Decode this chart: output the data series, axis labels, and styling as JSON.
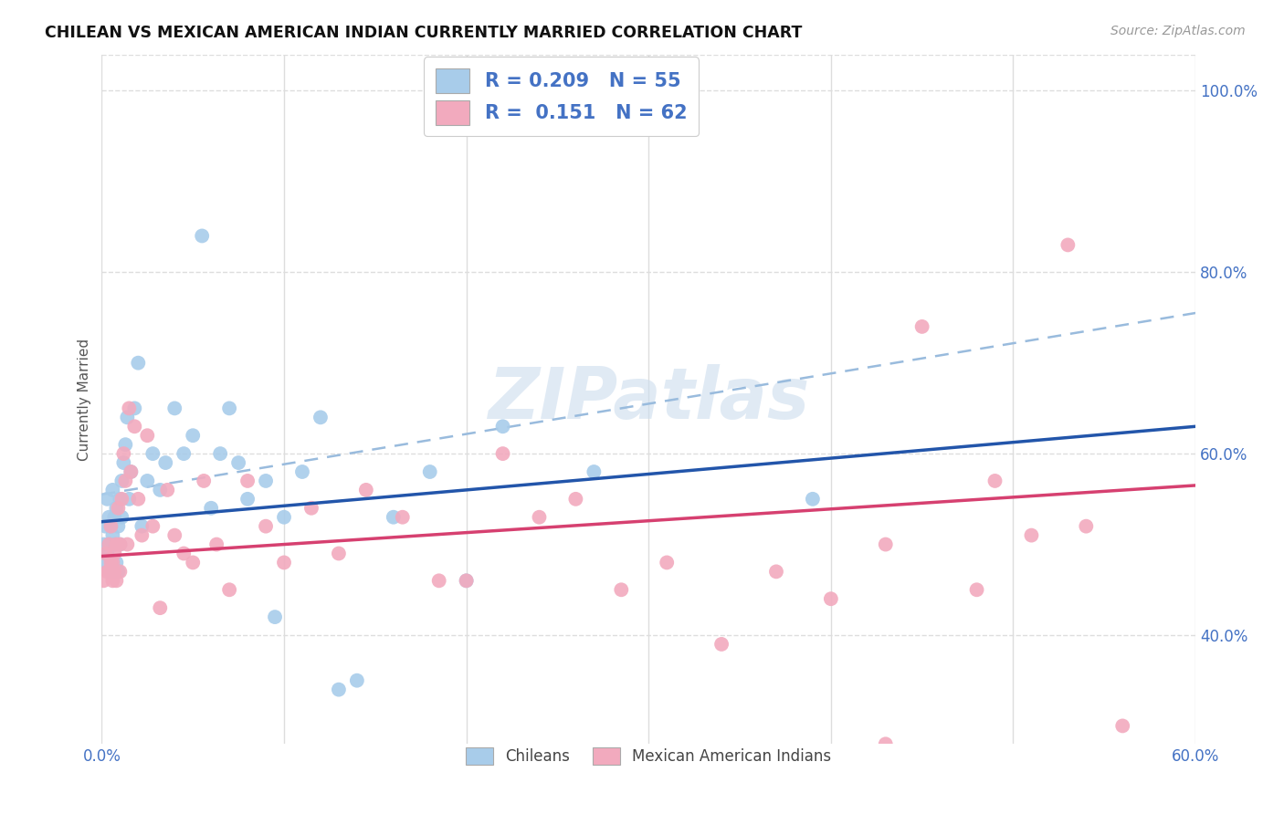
{
  "title": "CHILEAN VS MEXICAN AMERICAN INDIAN CURRENTLY MARRIED CORRELATION CHART",
  "source": "Source: ZipAtlas.com",
  "ylabel": "Currently Married",
  "xlim": [
    0.0,
    0.6
  ],
  "ylim": [
    0.28,
    1.04
  ],
  "xticks": [
    0.0,
    0.1,
    0.2,
    0.3,
    0.4,
    0.5,
    0.6
  ],
  "xticklabels": [
    "0.0%",
    "",
    "",
    "",
    "",
    "",
    "60.0%"
  ],
  "yticks": [
    0.4,
    0.6,
    0.8,
    1.0
  ],
  "yticklabels": [
    "40.0%",
    "60.0%",
    "80.0%",
    "100.0%"
  ],
  "legend_r_blue": "0.209",
  "legend_n_blue": "55",
  "legend_r_pink": "0.151",
  "legend_n_pink": "62",
  "blue_color": "#A8CCEA",
  "pink_color": "#F2AABE",
  "blue_line_color": "#2255AA",
  "pink_line_color": "#D64070",
  "dash_line_color": "#99BBDD",
  "grid_color": "#DDDDDD",
  "background_color": "#FFFFFF",
  "watermark": "ZIPatlas",
  "blue_line_x0": 0.0,
  "blue_line_y0": 0.525,
  "blue_line_x1": 0.6,
  "blue_line_y1": 0.63,
  "pink_line_x0": 0.0,
  "pink_line_y0": 0.487,
  "pink_line_x1": 0.6,
  "pink_line_y1": 0.565,
  "dash_line_x0": 0.0,
  "dash_line_y0": 0.555,
  "dash_line_x1": 0.6,
  "dash_line_y1": 0.755,
  "chileans_x": [
    0.001,
    0.002,
    0.002,
    0.003,
    0.003,
    0.004,
    0.004,
    0.005,
    0.005,
    0.006,
    0.006,
    0.007,
    0.007,
    0.008,
    0.008,
    0.009,
    0.009,
    0.01,
    0.01,
    0.011,
    0.011,
    0.012,
    0.013,
    0.014,
    0.015,
    0.016,
    0.018,
    0.02,
    0.022,
    0.025,
    0.028,
    0.032,
    0.035,
    0.04,
    0.045,
    0.05,
    0.055,
    0.06,
    0.065,
    0.07,
    0.075,
    0.08,
    0.09,
    0.095,
    0.1,
    0.11,
    0.12,
    0.13,
    0.14,
    0.16,
    0.18,
    0.2,
    0.22,
    0.27,
    0.39
  ],
  "chileans_y": [
    0.5,
    0.48,
    0.52,
    0.49,
    0.55,
    0.5,
    0.53,
    0.47,
    0.52,
    0.51,
    0.56,
    0.5,
    0.53,
    0.48,
    0.54,
    0.52,
    0.47,
    0.55,
    0.5,
    0.53,
    0.57,
    0.59,
    0.61,
    0.64,
    0.55,
    0.58,
    0.65,
    0.7,
    0.52,
    0.57,
    0.6,
    0.56,
    0.59,
    0.65,
    0.6,
    0.62,
    0.84,
    0.54,
    0.6,
    0.65,
    0.59,
    0.55,
    0.57,
    0.42,
    0.53,
    0.58,
    0.64,
    0.34,
    0.35,
    0.53,
    0.58,
    0.46,
    0.63,
    0.58,
    0.55
  ],
  "mexican_x": [
    0.001,
    0.002,
    0.003,
    0.004,
    0.004,
    0.005,
    0.005,
    0.006,
    0.006,
    0.007,
    0.007,
    0.008,
    0.008,
    0.009,
    0.01,
    0.01,
    0.011,
    0.012,
    0.013,
    0.014,
    0.015,
    0.016,
    0.018,
    0.02,
    0.022,
    0.025,
    0.028,
    0.032,
    0.036,
    0.04,
    0.045,
    0.05,
    0.056,
    0.063,
    0.07,
    0.08,
    0.09,
    0.1,
    0.115,
    0.13,
    0.145,
    0.165,
    0.185,
    0.2,
    0.22,
    0.24,
    0.26,
    0.285,
    0.31,
    0.34,
    0.37,
    0.4,
    0.43,
    0.43,
    0.45,
    0.48,
    0.49,
    0.51,
    0.53,
    0.54,
    0.56,
    0.56
  ],
  "mexican_y": [
    0.46,
    0.49,
    0.47,
    0.5,
    0.47,
    0.48,
    0.52,
    0.46,
    0.48,
    0.49,
    0.47,
    0.5,
    0.46,
    0.54,
    0.47,
    0.5,
    0.55,
    0.6,
    0.57,
    0.5,
    0.65,
    0.58,
    0.63,
    0.55,
    0.51,
    0.62,
    0.52,
    0.43,
    0.56,
    0.51,
    0.49,
    0.48,
    0.57,
    0.5,
    0.45,
    0.57,
    0.52,
    0.48,
    0.54,
    0.49,
    0.56,
    0.53,
    0.46,
    0.46,
    0.6,
    0.53,
    0.55,
    0.45,
    0.48,
    0.39,
    0.47,
    0.44,
    0.28,
    0.5,
    0.74,
    0.45,
    0.57,
    0.51,
    0.83,
    0.52,
    0.27,
    0.3
  ]
}
